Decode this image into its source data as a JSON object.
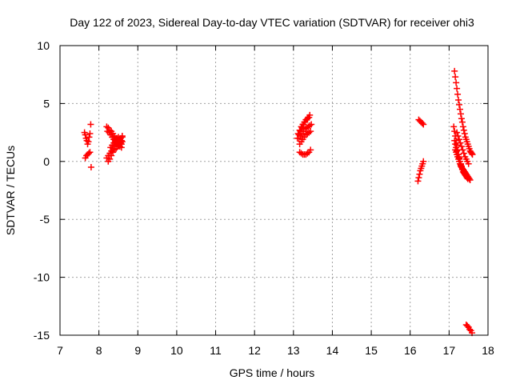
{
  "chart_data": {
    "type": "scatter",
    "title": "Day 122 of 2023, Sidereal Day-to-day VTEC variation (SDTVAR) for receiver ohi3",
    "xlabel": "GPS time / hours",
    "ylabel": "SDTVAR / TECUs",
    "xlim": [
      7,
      18
    ],
    "ylim": [
      -15,
      10
    ],
    "xticks": [
      7,
      8,
      9,
      10,
      11,
      12,
      13,
      14,
      15,
      16,
      17,
      18
    ],
    "yticks": [
      -15,
      -10,
      -5,
      0,
      5,
      10
    ],
    "grid": true,
    "marker": "+",
    "color": "#ff0000",
    "series": [
      {
        "name": "SDTVAR",
        "tracks": [
          [
            [
              7.63,
              2.5
            ],
            [
              7.65,
              2.3
            ],
            [
              7.67,
              2.0
            ],
            [
              7.69,
              1.8
            ],
            [
              7.71,
              1.5
            ],
            [
              7.73,
              1.7
            ],
            [
              7.75,
              2.1
            ],
            [
              7.77,
              2.4
            ]
          ],
          [
            [
              7.65,
              0.3
            ],
            [
              7.68,
              0.5
            ],
            [
              7.71,
              0.6
            ],
            [
              7.74,
              0.7
            ],
            [
              7.77,
              0.8
            ]
          ],
          [
            [
              7.79,
              3.2
            ],
            [
              7.8,
              -0.5
            ]
          ],
          [
            [
              8.2,
              3.0
            ],
            [
              8.24,
              2.9
            ],
            [
              8.28,
              2.7
            ],
            [
              8.32,
              2.6
            ],
            [
              8.36,
              2.4
            ],
            [
              8.4,
              2.2
            ],
            [
              8.44,
              2.0
            ],
            [
              8.48,
              1.8
            ],
            [
              8.52,
              1.7
            ],
            [
              8.56,
              1.6
            ],
            [
              8.58,
              1.5
            ]
          ],
          [
            [
              8.22,
              2.6
            ],
            [
              8.26,
              2.5
            ],
            [
              8.3,
              2.3
            ],
            [
              8.34,
              2.1
            ],
            [
              8.38,
              1.9
            ],
            [
              8.42,
              1.7
            ],
            [
              8.46,
              1.5
            ],
            [
              8.5,
              1.4
            ],
            [
              8.54,
              1.3
            ],
            [
              8.58,
              1.2
            ]
          ],
          [
            [
              8.2,
              0.3
            ],
            [
              8.24,
              0.5
            ],
            [
              8.28,
              0.7
            ],
            [
              8.32,
              0.9
            ],
            [
              8.36,
              1.1
            ],
            [
              8.4,
              1.3
            ],
            [
              8.44,
              1.5
            ],
            [
              8.48,
              1.7
            ],
            [
              8.52,
              1.9
            ],
            [
              8.56,
              2.0
            ],
            [
              8.6,
              2.2
            ]
          ],
          [
            [
              8.24,
              0.0
            ],
            [
              8.28,
              0.2
            ],
            [
              8.32,
              0.5
            ],
            [
              8.36,
              0.8
            ],
            [
              8.4,
              1.0
            ],
            [
              8.44,
              1.1
            ],
            [
              8.48,
              1.3
            ],
            [
              8.52,
              1.4
            ],
            [
              8.56,
              1.5
            ],
            [
              8.6,
              1.7
            ]
          ],
          [
            [
              8.3,
              1.2
            ],
            [
              8.34,
              1.4
            ],
            [
              8.38,
              1.6
            ],
            [
              8.42,
              1.8
            ],
            [
              8.46,
              2.0
            ],
            [
              8.5,
              2.1
            ],
            [
              8.54,
              1.9
            ],
            [
              8.58,
              1.8
            ],
            [
              8.6,
              2.1
            ]
          ],
          [
            [
              13.1,
              2.0
            ],
            [
              13.14,
              2.3
            ],
            [
              13.18,
              2.6
            ],
            [
              13.22,
              2.9
            ],
            [
              13.26,
              3.2
            ],
            [
              13.3,
              3.4
            ],
            [
              13.34,
              3.6
            ],
            [
              13.38,
              3.8
            ],
            [
              13.42,
              4.0
            ]
          ],
          [
            [
              13.12,
              2.4
            ],
            [
              13.16,
              2.7
            ],
            [
              13.2,
              3.0
            ],
            [
              13.24,
              3.2
            ],
            [
              13.28,
              3.4
            ],
            [
              13.32,
              3.6
            ],
            [
              13.36,
              3.7
            ],
            [
              13.4,
              3.8
            ]
          ],
          [
            [
              13.14,
              2.0
            ],
            [
              13.18,
              2.2
            ],
            [
              13.22,
              2.4
            ],
            [
              13.26,
              2.6
            ],
            [
              13.3,
              2.8
            ],
            [
              13.34,
              2.9
            ],
            [
              13.38,
              3.0
            ],
            [
              13.42,
              3.1
            ],
            [
              13.46,
              3.2
            ]
          ],
          [
            [
              13.16,
              1.5
            ],
            [
              13.2,
              1.7
            ],
            [
              13.24,
              1.9
            ],
            [
              13.28,
              2.1
            ],
            [
              13.32,
              2.3
            ],
            [
              13.36,
              2.4
            ],
            [
              13.4,
              2.5
            ],
            [
              13.44,
              2.6
            ]
          ],
          [
            [
              13.16,
              0.8
            ],
            [
              13.2,
              0.7
            ],
            [
              13.24,
              0.6
            ],
            [
              13.28,
              0.6
            ],
            [
              13.32,
              0.6
            ],
            [
              13.36,
              0.7
            ],
            [
              13.4,
              0.8
            ],
            [
              13.44,
              1.0
            ]
          ],
          [
            [
              16.22,
              3.6
            ],
            [
              16.25,
              3.5
            ],
            [
              16.28,
              3.4
            ],
            [
              16.31,
              3.3
            ],
            [
              16.34,
              3.2
            ]
          ],
          [
            [
              16.2,
              -1.7
            ],
            [
              16.22,
              -1.4
            ],
            [
              16.24,
              -1.1
            ],
            [
              16.26,
              -0.8
            ],
            [
              16.28,
              -0.6
            ],
            [
              16.3,
              -0.4
            ],
            [
              16.32,
              -0.2
            ],
            [
              16.34,
              0.0
            ]
          ],
          [
            [
              17.14,
              7.8
            ],
            [
              17.16,
              7.3
            ],
            [
              17.18,
              6.8
            ],
            [
              17.2,
              6.3
            ],
            [
              17.22,
              5.8
            ],
            [
              17.24,
              5.3
            ],
            [
              17.26,
              4.9
            ],
            [
              17.28,
              4.5
            ],
            [
              17.3,
              4.1
            ],
            [
              17.32,
              3.7
            ],
            [
              17.34,
              3.4
            ],
            [
              17.36,
              3.0
            ],
            [
              17.38,
              2.7
            ],
            [
              17.4,
              2.4
            ],
            [
              17.42,
              2.1
            ],
            [
              17.44,
              1.9
            ],
            [
              17.46,
              1.7
            ],
            [
              17.48,
              1.5
            ],
            [
              17.5,
              1.3
            ],
            [
              17.52,
              1.1
            ],
            [
              17.54,
              0.9
            ],
            [
              17.56,
              0.8
            ],
            [
              17.58,
              0.7
            ],
            [
              17.6,
              0.6
            ]
          ],
          [
            [
              17.12,
              3.0
            ],
            [
              17.14,
              2.6
            ],
            [
              17.16,
              2.2
            ],
            [
              17.18,
              1.8
            ],
            [
              17.2,
              1.4
            ],
            [
              17.22,
              1.0
            ],
            [
              17.24,
              0.6
            ],
            [
              17.26,
              0.3
            ],
            [
              17.28,
              0.0
            ],
            [
              17.3,
              -0.3
            ],
            [
              17.32,
              -0.5
            ],
            [
              17.34,
              -0.7
            ],
            [
              17.36,
              -0.9
            ],
            [
              17.38,
              -1.0
            ],
            [
              17.4,
              -1.1
            ],
            [
              17.42,
              -1.2
            ],
            [
              17.44,
              -1.3
            ],
            [
              17.46,
              -1.4
            ],
            [
              17.48,
              -1.5
            ]
          ],
          [
            [
              17.14,
              1.8
            ],
            [
              17.16,
              1.5
            ],
            [
              17.18,
              1.2
            ],
            [
              17.2,
              0.9
            ],
            [
              17.22,
              0.6
            ],
            [
              17.24,
              0.4
            ],
            [
              17.26,
              0.2
            ],
            [
              17.28,
              0.0
            ],
            [
              17.3,
              -0.2
            ],
            [
              17.32,
              -0.4
            ],
            [
              17.34,
              -0.6
            ],
            [
              17.36,
              -0.7
            ],
            [
              17.38,
              -0.8
            ],
            [
              17.4,
              -0.9
            ],
            [
              17.42,
              -1.0
            ]
          ],
          [
            [
              17.16,
              1.0
            ],
            [
              17.18,
              0.8
            ],
            [
              17.2,
              0.6
            ],
            [
              17.22,
              0.4
            ],
            [
              17.24,
              0.2
            ],
            [
              17.26,
              0.0
            ],
            [
              17.28,
              -0.2
            ],
            [
              17.3,
              -0.4
            ],
            [
              17.32,
              -0.5
            ],
            [
              17.34,
              -0.6
            ],
            [
              17.36,
              -0.7
            ],
            [
              17.38,
              -0.8
            ],
            [
              17.4,
              -0.9
            ],
            [
              17.42,
              -1.0
            ],
            [
              17.44,
              -1.1
            ],
            [
              17.46,
              -1.2
            ],
            [
              17.48,
              -1.3
            ],
            [
              17.5,
              -1.4
            ],
            [
              17.52,
              -1.5
            ],
            [
              17.54,
              -1.6
            ]
          ],
          [
            [
              17.2,
              2.5
            ],
            [
              17.23,
              2.2
            ],
            [
              17.26,
              1.9
            ],
            [
              17.29,
              1.6
            ],
            [
              17.32,
              1.3
            ],
            [
              17.35,
              1.0
            ],
            [
              17.38,
              0.7
            ],
            [
              17.41,
              0.4
            ],
            [
              17.44,
              0.2
            ],
            [
              17.47,
              0.0
            ],
            [
              17.5,
              -0.2
            ]
          ],
          [
            [
              17.44,
              -14.1
            ],
            [
              17.47,
              -14.2
            ],
            [
              17.5,
              -14.3
            ],
            [
              17.53,
              -14.5
            ],
            [
              17.56,
              -14.6
            ],
            [
              17.59,
              -14.8
            ]
          ]
        ]
      }
    ]
  }
}
